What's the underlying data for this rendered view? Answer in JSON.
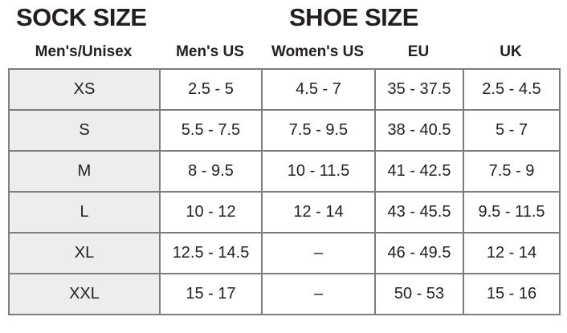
{
  "titles": {
    "sock": "SOCK SIZE",
    "shoe": "SHOE SIZE"
  },
  "chart_data": {
    "type": "table",
    "title_left": "SOCK SIZE",
    "title_right": "SHOE SIZE",
    "columns": [
      "Men's/Unisex",
      "Men's US",
      "Women's US",
      "EU",
      "UK"
    ],
    "rows": [
      [
        "XS",
        "2.5 - 5",
        "4.5 - 7",
        "35 - 37.5",
        "2.5 - 4.5"
      ],
      [
        "S",
        "5.5 - 7.5",
        "7.5 - 9.5",
        "38 - 40.5",
        "5 - 7"
      ],
      [
        "M",
        "8 - 9.5",
        "10 - 11.5",
        "41 - 42.5",
        "7.5 - 9"
      ],
      [
        "L",
        "10 - 12",
        "12 - 14",
        "43 - 45.5",
        "9.5 - 11.5"
      ],
      [
        "XL",
        "12.5 - 14.5",
        "–",
        "46 - 49.5",
        "12 - 14"
      ],
      [
        "XXL",
        "15 - 17",
        "–",
        "50 - 53",
        "15 - 16"
      ]
    ],
    "layout_hints": {
      "first_column_is_row_header": true,
      "grid": true
    }
  },
  "colors": {
    "text": "#231f20",
    "row_header_bg": "#ededed",
    "cell_bg": "#ffffff",
    "border": "#7d7d7d"
  }
}
